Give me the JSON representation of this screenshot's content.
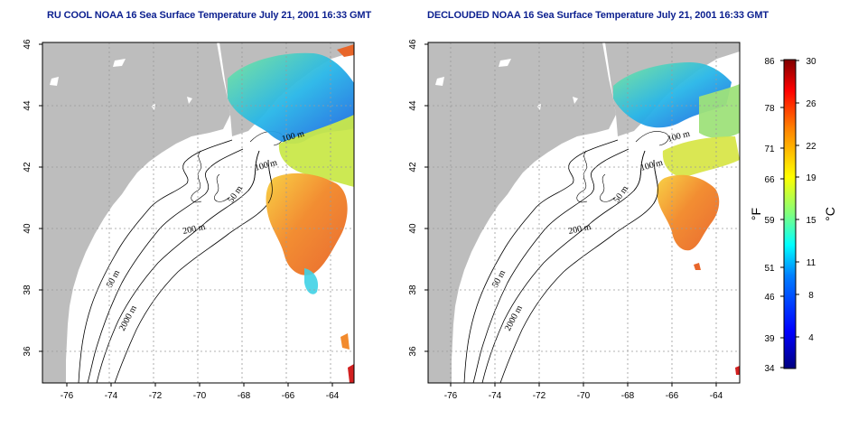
{
  "panels": [
    {
      "id": "left",
      "title": "RU COOL NOAA 16 Sea Surface Temperature July 21, 2001 16:33 GMT",
      "contour_labels": [
        "100 m",
        "100 m",
        "50 m",
        "200 m",
        "50 m",
        "2000 m"
      ]
    },
    {
      "id": "right",
      "title": "DECLOUDED NOAA 16 Sea Surface Temperature July 21, 2001 16:33 GMT",
      "contour_labels": [
        "100 m",
        "100 m",
        "50 m",
        "200 m",
        "50 m",
        "2000 m"
      ]
    }
  ],
  "axes": {
    "lon_ticks": [
      "-76",
      "-74",
      "-72",
      "-70",
      "-68",
      "-66",
      "-64"
    ],
    "lat_ticks": [
      "36",
      "38",
      "40",
      "42",
      "44",
      "46"
    ]
  },
  "colorbar": {
    "fahrenheit_ticks": [
      "86",
      "78",
      "71",
      "66",
      "59",
      "51",
      "46",
      "39",
      "34"
    ],
    "celsius_ticks": [
      "30",
      "26",
      "22",
      "19",
      "15",
      "11",
      "8",
      "4"
    ],
    "fahrenheit_unit": "°F",
    "celsius_unit": "°C",
    "range_c": [
      1,
      30
    ],
    "colors": [
      "#00007f",
      "#0000ff",
      "#007fff",
      "#00ffff",
      "#7fff7f",
      "#ffff00",
      "#ff7f00",
      "#ff0000",
      "#7f0000"
    ]
  },
  "colors": {
    "land": "#bdbdbd",
    "title": "#0b1f8f",
    "warm_sst": "#f07828",
    "cool_sst": "#2a90e8"
  }
}
